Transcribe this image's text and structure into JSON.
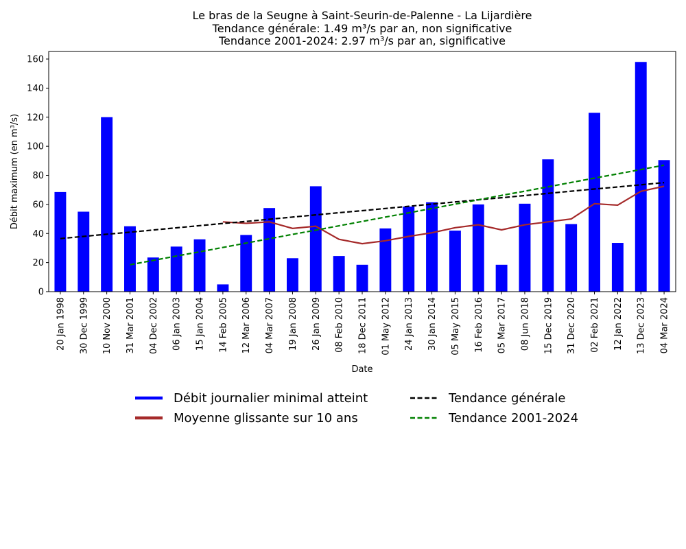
{
  "chart_data": {
    "type": "bar",
    "title": [
      "Le bras de la Seugne à Saint-Seurin-de-Palenne - La Lijardière",
      "Tendance générale: 1.49 m³/s par an, non significative",
      "Tendance 2001-2024: 2.97 m³/s par an, significative"
    ],
    "x_label": "Date",
    "y_label": "Débit maximum (en m³/s)",
    "categories": [
      "20 Jan 1998",
      "30 Dec 1999",
      "10 Nov 2000",
      "31 Mar 2001",
      "04 Dec 2002",
      "06 Jan 2003",
      "15 Jan 2004",
      "14 Feb 2005",
      "12 Mar 2006",
      "04 Mar 2007",
      "19 Jan 2008",
      "26 Jan 2009",
      "08 Feb 2010",
      "18 Dec 2011",
      "01 May 2012",
      "24 Jan 2013",
      "30 Jan 2014",
      "05 May 2015",
      "16 Feb 2016",
      "05 Mar 2017",
      "08 Jun 2018",
      "15 Dec 2019",
      "31 Dec 2020",
      "02 Feb 2021",
      "12 Jan 2022",
      "13 Dec 2023",
      "04 Mar 2024"
    ],
    "series": [
      {
        "name": "Débit journalier minimal atteint",
        "type": "bar",
        "color": "#0000ff",
        "values": [
          68.5,
          55,
          120,
          45,
          23.5,
          31,
          36,
          5,
          39,
          57.5,
          23,
          72.5,
          24.5,
          18.5,
          43.5,
          58.5,
          61.5,
          42,
          60,
          18.5,
          60.5,
          91,
          46.5,
          123,
          33.5,
          158,
          90.5
        ]
      },
      {
        "name": "Moyenne glissante sur 10 ans",
        "type": "line",
        "color": "#a52a2a",
        "dashed": false,
        "values": [
          null,
          null,
          null,
          null,
          null,
          null,
          null,
          48,
          47,
          48,
          43.5,
          45,
          36,
          33,
          35,
          38,
          40.5,
          44,
          46,
          42.5,
          46,
          48,
          50,
          60.5,
          59.5,
          69,
          72.5
        ]
      },
      {
        "name": "Tendance générale",
        "type": "line",
        "color": "#000000",
        "dashed": true,
        "values": [
          36.5,
          38.0,
          39.5,
          40.9,
          42.4,
          43.9,
          45.4,
          46.9,
          48.3,
          49.8,
          51.3,
          52.8,
          54.3,
          55.7,
          57.2,
          58.7,
          60.2,
          61.7,
          63.2,
          64.6,
          66.1,
          67.6,
          69.1,
          70.6,
          72.0,
          73.5,
          75.0
        ]
      },
      {
        "name": "Tendance 2001-2024",
        "type": "line",
        "color": "#008000",
        "dashed": true,
        "values": [
          null,
          null,
          null,
          18.5,
          21.5,
          24.5,
          27.4,
          30.4,
          33.4,
          36.4,
          39.4,
          42.3,
          45.3,
          48.3,
          51.3,
          54.2,
          57.2,
          60.2,
          63.2,
          66.2,
          69.1,
          72.1,
          75.1,
          78.1,
          81.0,
          84.0,
          87.0
        ]
      }
    ],
    "ylim": [
      0,
      165.2
    ],
    "yticks": [
      0,
      20,
      40,
      60,
      80,
      100,
      120,
      140,
      160
    ],
    "grid": false,
    "legend": "bottom"
  }
}
